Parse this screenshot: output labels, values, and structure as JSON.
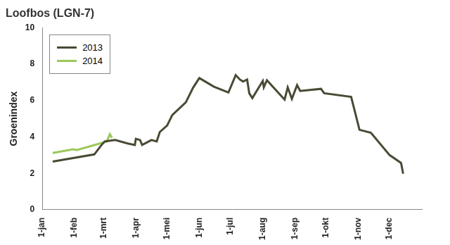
{
  "chart_data": {
    "type": "line",
    "title": "Loofbos (LGN-7)",
    "y_label": "Groenindex",
    "xlim": [
      0,
      365
    ],
    "xticks": [
      {
        "value": 0,
        "label": "1-jan"
      },
      {
        "value": 31,
        "label": "1-feb"
      },
      {
        "value": 59,
        "label": "1-mrt"
      },
      {
        "value": 90,
        "label": "1-apr"
      },
      {
        "value": 120,
        "label": "1-mei"
      },
      {
        "value": 151,
        "label": "1-jun"
      },
      {
        "value": 181,
        "label": "1-jul"
      },
      {
        "value": 212,
        "label": "1-aug"
      },
      {
        "value": 243,
        "label": "1-sep"
      },
      {
        "value": 273,
        "label": "1-okt"
      },
      {
        "value": 304,
        "label": "1-nov"
      },
      {
        "value": 334,
        "label": "1-dec"
      }
    ],
    "ylim": [
      0,
      10
    ],
    "yticks": [
      0,
      2,
      4,
      6,
      8,
      10
    ],
    "grid": false,
    "legend": "upper left",
    "series": [
      {
        "name": "2013",
        "color": "#4a4a35",
        "x": [
          10,
          50,
          57,
          60,
          70,
          82,
          89,
          90,
          94,
          96,
          105,
          110,
          113,
          120,
          125,
          138,
          145,
          151,
          165,
          179,
          186,
          190,
          193,
          197,
          199,
          202,
          212,
          213,
          216,
          233,
          236,
          240,
          245,
          248,
          268,
          271,
          297,
          305,
          316,
          334,
          345,
          347
        ],
        "values": [
          2.65,
          3.04,
          3.56,
          3.75,
          3.83,
          3.64,
          3.56,
          3.9,
          3.83,
          3.56,
          3.83,
          3.75,
          4.27,
          4.62,
          5.2,
          5.9,
          6.7,
          7.23,
          6.76,
          6.44,
          7.39,
          7.15,
          7.04,
          7.15,
          6.4,
          6.13,
          7.07,
          6.72,
          7.11,
          6.05,
          6.72,
          6.09,
          6.84,
          6.52,
          6.64,
          6.4,
          6.2,
          4.39,
          4.23,
          3.0,
          2.57,
          1.98
        ]
      },
      {
        "name": "2014",
        "color": "#9bc85a",
        "x": [
          10,
          30,
          33,
          62,
          65,
          67
        ],
        "values": [
          3.12,
          3.32,
          3.28,
          3.75,
          4.15,
          3.95
        ]
      }
    ]
  }
}
